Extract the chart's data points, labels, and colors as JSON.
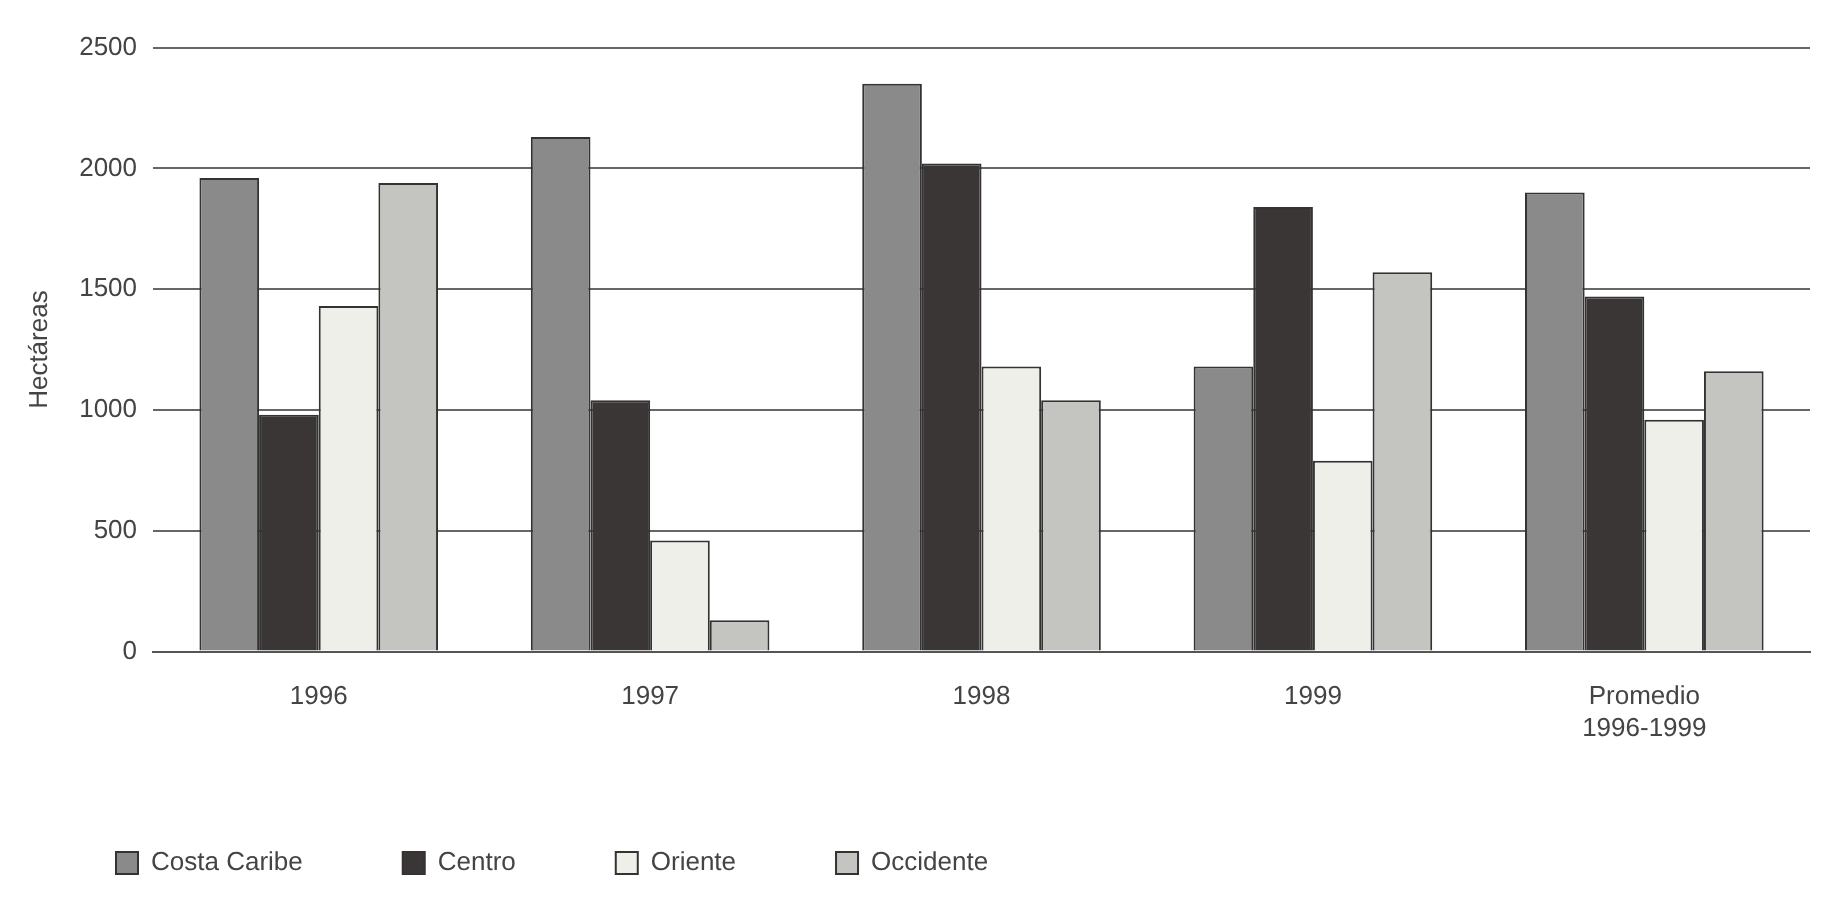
{
  "chart_data": {
    "type": "bar",
    "ylabel": "Hectáreas",
    "categories": [
      "1996",
      "1997",
      "1998",
      "1999",
      "Promedio\n1996-1999"
    ],
    "series": [
      {
        "name": "Costa Caribe",
        "color": "#8a8a8a",
        "values": [
          1960,
          2130,
          2350,
          1180,
          1900
        ]
      },
      {
        "name": "Centro",
        "color": "#3a3636",
        "values": [
          980,
          1040,
          2020,
          1840,
          1470
        ]
      },
      {
        "name": "Oriente",
        "color": "#efefea",
        "values": [
          1430,
          460,
          1180,
          790,
          960
        ]
      },
      {
        "name": "Occidente",
        "color": "#c4c4c0",
        "values": [
          1940,
          130,
          1040,
          1570,
          1160
        ]
      }
    ],
    "ylim": [
      0,
      2500
    ],
    "yticks": [
      0,
      500,
      1000,
      1500,
      2000,
      2500
    ],
    "grid": "y",
    "legend": "bottom"
  }
}
